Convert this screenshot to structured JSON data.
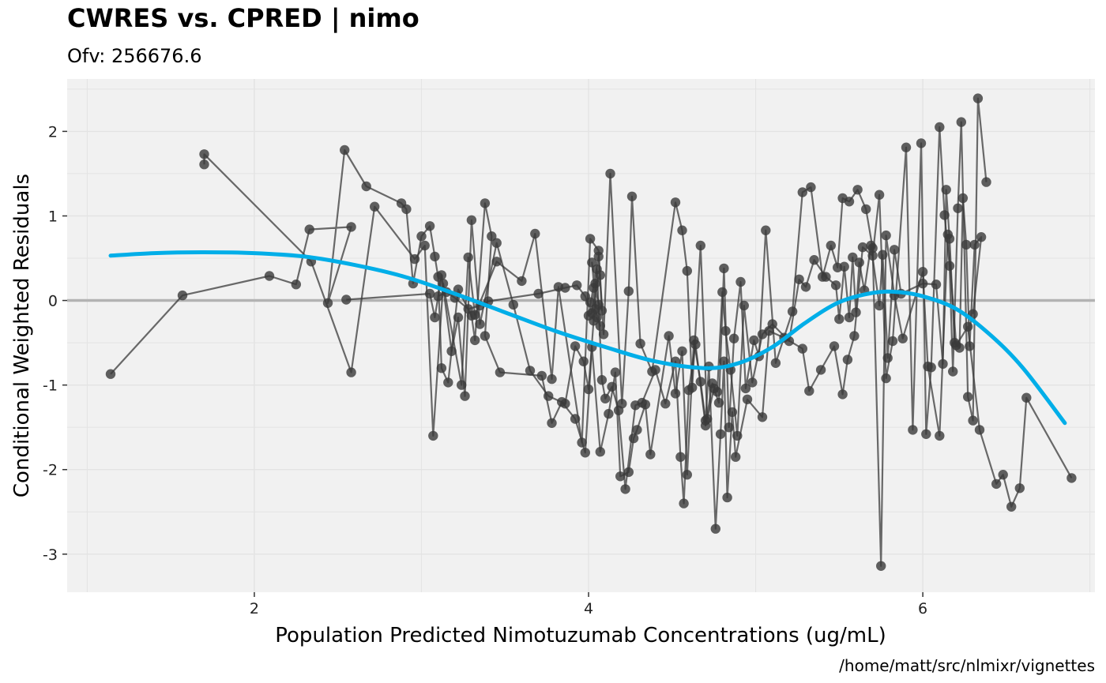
{
  "chart_data": {
    "type": "scatter",
    "title": "CWRES vs. CPRED | nimo",
    "subtitle": "Ofv: 256676.6",
    "xlabel": "Population Predicted Nimotuzumab Concentrations (ug/mL)",
    "ylabel": "Conditional Weighted Residuals",
    "caption": "/home/matt/src/nlmixr/vignettes",
    "xlim": [
      0.88,
      7.03
    ],
    "ylim": [
      -3.45,
      2.62
    ],
    "x_ticks": [
      2,
      4,
      6
    ],
    "y_ticks": [
      -3,
      -2,
      -1,
      0,
      1,
      2
    ],
    "grid": true,
    "colors": {
      "panel_bg": "#f1f1f1",
      "grid": "#e3e3e3",
      "zero_line": "#b3b3b3",
      "points": "#3a3a3a",
      "smooth": "#00aee8"
    },
    "reference_line": {
      "y": 0
    },
    "series": [
      {
        "type": "connected-points",
        "points": [
          [
            1.14,
            -0.87
          ],
          [
            1.57,
            0.06
          ],
          [
            2.09,
            0.29
          ],
          [
            2.25,
            0.19
          ],
          [
            2.33,
            0.84
          ],
          [
            2.58,
            0.87
          ],
          [
            2.44,
            -0.03
          ],
          [
            2.54,
            1.78
          ],
          [
            2.67,
            1.35
          ],
          [
            2.88,
            1.15
          ],
          [
            2.91,
            1.08
          ],
          [
            2.95,
            0.2
          ],
          [
            3.0,
            0.76
          ],
          [
            3.05,
            0.88
          ],
          [
            3.08,
            0.52
          ],
          [
            3.1,
            0.28
          ],
          [
            3.12,
            -0.8
          ],
          [
            3.16,
            -0.97
          ],
          [
            3.22,
            0.13
          ],
          [
            3.3,
            -0.18
          ],
          [
            3.32,
            -0.47
          ],
          [
            3.38,
            1.15
          ],
          [
            3.42,
            0.76
          ],
          [
            3.38,
            -0.42
          ],
          [
            3.47,
            -0.85
          ],
          [
            3.72,
            -0.89
          ],
          [
            3.78,
            -1.45
          ],
          [
            3.84,
            -1.2
          ],
          [
            3.92,
            -1.4
          ],
          [
            3.98,
            -1.8
          ],
          [
            4.02,
            -0.55
          ],
          [
            4.07,
            -1.79
          ],
          [
            4.12,
            -1.34
          ],
          [
            4.16,
            -0.85
          ],
          [
            4.19,
            -2.08
          ],
          [
            4.24,
            -2.03
          ],
          [
            4.27,
            -1.63
          ],
          [
            4.29,
            -1.53
          ],
          [
            4.34,
            -1.23
          ],
          [
            4.37,
            -1.82
          ],
          [
            4.48,
            -0.42
          ],
          [
            4.52,
            -1.1
          ],
          [
            4.56,
            -0.6
          ],
          [
            4.59,
            -2.06
          ],
          [
            4.63,
            -0.47
          ],
          [
            4.67,
            -0.96
          ],
          [
            4.7,
            -1.42
          ],
          [
            4.72,
            -0.78
          ],
          [
            4.76,
            -2.7
          ],
          [
            4.79,
            -1.58
          ],
          [
            4.81,
            -0.72
          ],
          [
            4.83,
            -2.33
          ],
          [
            4.86,
            -1.32
          ],
          [
            4.88,
            -1.85
          ],
          [
            4.95,
            -1.17
          ],
          [
            5.04,
            -1.38
          ],
          [
            5.08,
            -0.36
          ],
          [
            5.17,
            -0.44
          ],
          [
            5.28,
            -0.57
          ],
          [
            5.32,
            -1.07
          ],
          [
            5.39,
            -0.82
          ],
          [
            5.47,
            -0.54
          ],
          [
            5.52,
            -1.11
          ],
          [
            5.55,
            -0.7
          ],
          [
            5.59,
            -0.42
          ],
          [
            5.64,
            0.63
          ],
          [
            5.7,
            0.53
          ],
          [
            5.74,
            1.25
          ],
          [
            5.78,
            -0.92
          ],
          [
            5.82,
            -0.48
          ],
          [
            5.9,
            1.81
          ],
          [
            5.94,
            -1.53
          ],
          [
            5.99,
            1.86
          ],
          [
            6.02,
            -1.58
          ],
          [
            6.05,
            -0.79
          ],
          [
            6.1,
            2.05
          ],
          [
            6.13,
            1.01
          ],
          [
            6.16,
            0.41
          ],
          [
            6.18,
            -0.84
          ],
          [
            6.21,
            1.09
          ],
          [
            6.23,
            2.11
          ],
          [
            6.27,
            -1.14
          ],
          [
            6.3,
            -1.42
          ],
          [
            6.33,
            2.39
          ],
          [
            6.38,
            1.4
          ]
        ]
      },
      {
        "type": "connected-points",
        "points": [
          [
            1.7,
            1.61
          ],
          [
            1.7,
            1.73
          ],
          [
            2.34,
            0.46
          ],
          [
            2.58,
            -0.85
          ],
          [
            2.72,
            1.11
          ],
          [
            2.96,
            0.49
          ],
          [
            3.02,
            0.65
          ],
          [
            3.07,
            -1.6
          ],
          [
            3.13,
            0.2
          ],
          [
            3.24,
            -1.0
          ],
          [
            3.28,
            0.51
          ],
          [
            3.32,
            -0.17
          ],
          [
            3.45,
            0.46
          ],
          [
            3.6,
            0.23
          ],
          [
            3.68,
            0.79
          ],
          [
            3.78,
            -0.93
          ],
          [
            3.82,
            0.16
          ],
          [
            3.96,
            -1.68
          ],
          [
            4.01,
            0.73
          ],
          [
            4.06,
            0.59
          ],
          [
            4.09,
            -0.4
          ],
          [
            4.13,
            1.5
          ],
          [
            4.2,
            -1.22
          ],
          [
            4.24,
            0.11
          ],
          [
            4.26,
            1.23
          ],
          [
            4.31,
            -0.51
          ],
          [
            4.38,
            -0.84
          ],
          [
            4.52,
            1.16
          ],
          [
            4.56,
            0.83
          ],
          [
            4.59,
            0.35
          ],
          [
            4.62,
            -1.03
          ],
          [
            4.67,
            0.65
          ],
          [
            4.71,
            -1.4
          ],
          [
            4.75,
            -1.04
          ],
          [
            4.78,
            -1.21
          ],
          [
            4.81,
            0.38
          ],
          [
            4.84,
            -1.5
          ],
          [
            4.87,
            -0.45
          ],
          [
            4.91,
            0.22
          ],
          [
            4.94,
            -1.04
          ],
          [
            4.99,
            -0.47
          ],
          [
            5.02,
            -0.66
          ],
          [
            5.06,
            0.83
          ],
          [
            5.12,
            -0.74
          ],
          [
            5.22,
            -0.13
          ],
          [
            5.28,
            1.28
          ],
          [
            5.33,
            1.34
          ],
          [
            5.4,
            0.28
          ],
          [
            5.45,
            0.65
          ],
          [
            5.49,
            0.39
          ],
          [
            5.52,
            1.21
          ],
          [
            5.56,
            1.17
          ],
          [
            5.61,
            1.31
          ],
          [
            5.66,
            1.08
          ],
          [
            5.7,
            0.62
          ],
          [
            5.75,
            -3.14
          ],
          [
            5.78,
            0.77
          ],
          [
            5.83,
            0.06
          ],
          [
            5.88,
            -0.45
          ],
          [
            6.0,
            0.34
          ],
          [
            6.03,
            -0.78
          ],
          [
            6.1,
            -1.6
          ],
          [
            6.15,
            0.78
          ],
          [
            6.2,
            -0.53
          ],
          [
            6.27,
            -0.31
          ],
          [
            6.34,
            -1.53
          ],
          [
            6.44,
            -2.17
          ],
          [
            6.48,
            -2.06
          ],
          [
            6.53,
            -2.44
          ],
          [
            6.58,
            -2.22
          ],
          [
            6.62,
            -1.15
          ],
          [
            6.89,
            -2.1
          ]
        ]
      },
      {
        "type": "connected-points",
        "points": [
          [
            2.55,
            0.01
          ],
          [
            3.05,
            0.08
          ],
          [
            3.08,
            -0.2
          ],
          [
            3.12,
            0.3
          ],
          [
            3.18,
            -0.6
          ],
          [
            3.22,
            -0.2
          ],
          [
            3.26,
            -1.13
          ],
          [
            3.3,
            0.95
          ],
          [
            3.35,
            -0.28
          ],
          [
            3.45,
            0.68
          ],
          [
            3.55,
            -0.05
          ],
          [
            3.65,
            -0.83
          ],
          [
            3.76,
            -1.13
          ],
          [
            3.86,
            -1.22
          ],
          [
            3.92,
            -0.54
          ],
          [
            3.97,
            -0.72
          ],
          [
            4.0,
            -1.05
          ],
          [
            4.03,
            -0.24
          ],
          [
            4.05,
            0.37
          ],
          [
            4.08,
            -0.94
          ],
          [
            4.1,
            -1.16
          ],
          [
            4.14,
            -1.02
          ],
          [
            4.18,
            -1.3
          ],
          [
            4.22,
            -2.23
          ],
          [
            4.28,
            -1.24
          ],
          [
            4.32,
            -1.21
          ],
          [
            4.4,
            -0.82
          ],
          [
            4.46,
            -1.22
          ],
          [
            4.52,
            -0.72
          ],
          [
            4.55,
            -1.85
          ],
          [
            4.57,
            -2.4
          ],
          [
            4.6,
            -1.06
          ],
          [
            4.64,
            -0.52
          ],
          [
            4.7,
            -1.48
          ],
          [
            4.74,
            -0.98
          ],
          [
            4.77,
            -1.08
          ],
          [
            4.8,
            0.1
          ],
          [
            4.82,
            -0.36
          ],
          [
            4.85,
            -0.82
          ],
          [
            4.89,
            -1.6
          ],
          [
            4.93,
            -0.06
          ],
          [
            4.98,
            -0.97
          ],
          [
            5.04,
            -0.4
          ],
          [
            5.1,
            -0.28
          ],
          [
            5.2,
            -0.48
          ],
          [
            5.26,
            0.25
          ],
          [
            5.3,
            0.16
          ],
          [
            5.35,
            0.48
          ],
          [
            5.42,
            0.28
          ],
          [
            5.48,
            0.18
          ],
          [
            5.5,
            -0.22
          ],
          [
            5.53,
            0.4
          ],
          [
            5.56,
            -0.2
          ],
          [
            5.58,
            0.51
          ],
          [
            5.6,
            -0.14
          ],
          [
            5.62,
            0.45
          ],
          [
            5.65,
            0.12
          ],
          [
            5.69,
            0.65
          ],
          [
            5.74,
            -0.06
          ],
          [
            5.76,
            0.54
          ],
          [
            5.79,
            -0.68
          ],
          [
            5.83,
            0.6
          ],
          [
            5.87,
            0.08
          ],
          [
            6.0,
            0.2
          ],
          [
            6.08,
            0.19
          ],
          [
            6.12,
            -0.75
          ],
          [
            6.14,
            1.31
          ],
          [
            6.16,
            0.73
          ],
          [
            6.19,
            -0.5
          ],
          [
            6.22,
            -0.56
          ],
          [
            6.24,
            1.21
          ],
          [
            6.26,
            0.66
          ],
          [
            6.28,
            -0.54
          ],
          [
            6.31,
            0.66
          ],
          [
            6.35,
            0.75
          ],
          [
            6.3,
            -0.16
          ]
        ]
      },
      {
        "type": "connected-points",
        "points": [
          [
            3.1,
            0.05
          ],
          [
            3.15,
            0.1
          ],
          [
            3.2,
            0.03
          ],
          [
            3.28,
            -0.1
          ],
          [
            3.35,
            -0.06
          ],
          [
            3.4,
            -0.01
          ],
          [
            3.7,
            0.08
          ],
          [
            3.86,
            0.15
          ],
          [
            3.93,
            0.18
          ],
          [
            3.98,
            0.05
          ],
          [
            4.02,
            -0.15
          ],
          [
            4.04,
            0.2
          ],
          [
            4.06,
            -0.05
          ],
          [
            4.02,
            0.45
          ],
          [
            4.05,
            -0.2
          ],
          [
            4.07,
            -0.3
          ],
          [
            4.04,
            -0.1
          ],
          [
            4.0,
            -0.18
          ],
          [
            4.06,
            0.52
          ],
          [
            4.08,
            -0.12
          ],
          [
            4.03,
            0.15
          ],
          [
            4.07,
            0.3
          ],
          [
            4.01,
            -0.02
          ]
        ]
      }
    ],
    "smooth_curve": {
      "x": [
        1.14,
        1.4,
        1.7,
        2.0,
        2.3,
        2.6,
        2.9,
        3.2,
        3.5,
        3.8,
        4.1,
        4.4,
        4.7,
        4.9,
        5.1,
        5.3,
        5.5,
        5.7,
        5.85,
        6.0,
        6.2,
        6.4,
        6.6,
        6.85
      ],
      "y": [
        0.53,
        0.56,
        0.57,
        0.56,
        0.52,
        0.42,
        0.28,
        0.08,
        -0.14,
        -0.36,
        -0.55,
        -0.72,
        -0.8,
        -0.74,
        -0.55,
        -0.26,
        -0.02,
        0.09,
        0.1,
        0.05,
        -0.1,
        -0.4,
        -0.8,
        -1.45
      ]
    }
  }
}
